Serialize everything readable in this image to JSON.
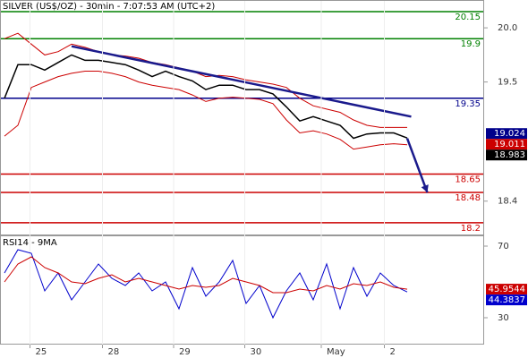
{
  "chart_data": [
    {
      "type": "line",
      "title": "SILVER (US$/OZ) - 30min - 7:07:53 AM (UTC+2)",
      "x": [
        0,
        1,
        2,
        3,
        4,
        5,
        6,
        7,
        8,
        9,
        10,
        11,
        12,
        13,
        14,
        15,
        16,
        17,
        18,
        19,
        20,
        21,
        22,
        23,
        24,
        25,
        26,
        27,
        28,
        29,
        30
      ],
      "series": [
        {
          "color": "#000000",
          "values": [
            19.35,
            19.66,
            19.66,
            19.61,
            19.68,
            19.75,
            19.7,
            19.7,
            19.68,
            19.66,
            19.61,
            19.55,
            19.6,
            19.55,
            19.51,
            19.43,
            19.47,
            19.47,
            19.43,
            19.43,
            19.39,
            19.27,
            19.14,
            19.18,
            19.14,
            19.1,
            18.98,
            19.02,
            19.03,
            19.03,
            18.983
          ]
        },
        {
          "color": "#cc0000",
          "values": [
            19.9,
            19.95,
            19.85,
            19.75,
            19.78,
            19.85,
            19.82,
            19.78,
            19.75,
            19.74,
            19.72,
            19.68,
            19.66,
            19.63,
            19.6,
            19.55,
            19.56,
            19.55,
            19.52,
            19.5,
            19.48,
            19.45,
            19.35,
            19.28,
            19.25,
            19.22,
            19.15,
            19.1,
            19.08,
            19.08,
            19.08
          ]
        },
        {
          "color": "#cc0000",
          "values": [
            19.0,
            19.1,
            19.45,
            19.5,
            19.55,
            19.58,
            19.6,
            19.6,
            19.58,
            19.55,
            19.5,
            19.47,
            19.45,
            19.43,
            19.38,
            19.32,
            19.35,
            19.36,
            19.35,
            19.34,
            19.3,
            19.15,
            19.03,
            19.05,
            19.02,
            18.97,
            18.88,
            18.9,
            18.92,
            18.93,
            18.92
          ]
        }
      ],
      "xlim": [
        0,
        35
      ],
      "ylim": [
        18.092,
        20.257
      ],
      "yticks": [
        {
          "value": 20,
          "label": "20.0"
        },
        19.5,
        18.4
      ],
      "levels": [
        {
          "value": 20.15,
          "color": "#008000"
        },
        {
          "value": 19.9,
          "color": "#008000"
        },
        {
          "value": 19.35,
          "color": "#00008b"
        },
        {
          "value": 18.65,
          "color": "#cc0000"
        },
        {
          "value": 18.48,
          "color": "#cc0000"
        },
        {
          "value": 18.2,
          "color": "#cc0000"
        }
      ],
      "trendline": {
        "color": "#1a1a8c",
        "x": [
          5,
          30.3
        ],
        "values": [
          19.83,
          19.18
        ]
      },
      "arrow": {
        "color": "#1a1a8c",
        "x": [
          30,
          31.5
        ],
        "values": [
          18.98,
          18.48
        ]
      },
      "badges": [
        {
          "value": 19.024,
          "color": "#00008b"
        },
        {
          "value": 19.011,
          "color": "#cc0000"
        },
        {
          "value": 18.983,
          "color": "#000000"
        }
      ]
    },
    {
      "type": "line",
      "title": "RSI14 - 9MA",
      "x": [
        0,
        1,
        2,
        3,
        4,
        5,
        6,
        7,
        8,
        9,
        10,
        11,
        12,
        13,
        14,
        15,
        16,
        17,
        18,
        19,
        20,
        21,
        22,
        23,
        24,
        25,
        26,
        27,
        28,
        29,
        30
      ],
      "series": [
        {
          "color": "#0000cc",
          "values": [
            55,
            68,
            66,
            45,
            55,
            40,
            50,
            60,
            52,
            48,
            55,
            45,
            50,
            35,
            58,
            42,
            50,
            62,
            38,
            48,
            30,
            45,
            55,
            40,
            60,
            35,
            58,
            42,
            55,
            48,
            44.3837
          ]
        },
        {
          "color": "#cc0000",
          "values": [
            50,
            60,
            64,
            58,
            55,
            50,
            49,
            52,
            54,
            50,
            52,
            50,
            48,
            46,
            48,
            47,
            48,
            52,
            50,
            48,
            44,
            44,
            46,
            45,
            48,
            46,
            49,
            48,
            50,
            47,
            45.9544
          ]
        }
      ],
      "xlim": [
        0,
        35
      ],
      "ylim": [
        15,
        76
      ],
      "yticks": [
        70,
        30
      ],
      "xticks": [
        {
          "value": 2.3,
          "label": "25"
        },
        {
          "value": 7.7,
          "label": "28"
        },
        {
          "value": 13,
          "label": "29"
        },
        {
          "value": 18.3,
          "label": "30"
        },
        {
          "value": 24,
          "label": "May"
        },
        {
          "value": 28.7,
          "label": "2"
        }
      ],
      "badges": [
        {
          "value": 45.9544,
          "color": "#cc0000"
        },
        {
          "value": 44.3837,
          "color": "#0000cc"
        }
      ]
    }
  ]
}
